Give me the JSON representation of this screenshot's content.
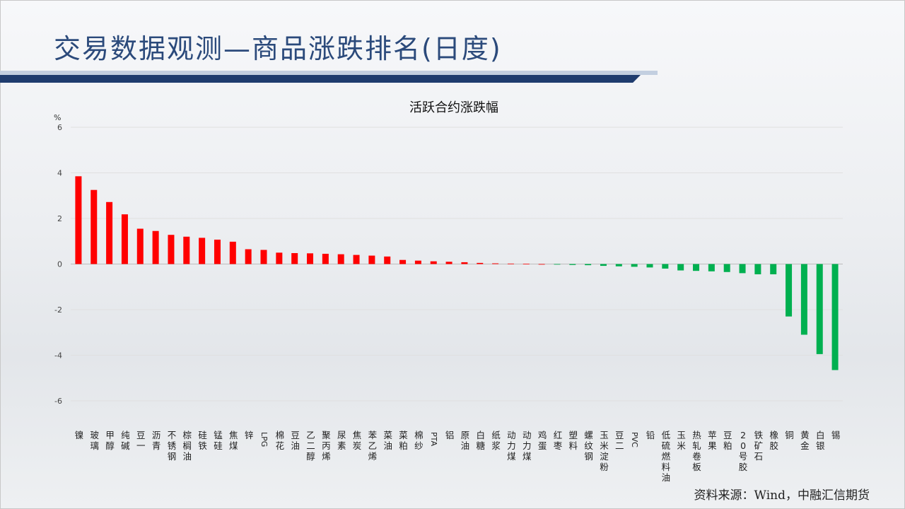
{
  "slide": {
    "title": "交易数据观测—商品涨跌排名(日度)",
    "source": "资料来源：Wind，中融汇信期货"
  },
  "colors": {
    "up": "#ff0000",
    "down": "#00b050",
    "title": "#2b4a7b",
    "bar": "#1f3c6e"
  },
  "chart_data": {
    "type": "bar",
    "title": "活跃合约涨跌幅",
    "ylabel": "%",
    "ylim": [
      -6,
      6
    ],
    "yticks": [
      6,
      4,
      2,
      0,
      -2,
      -4,
      -6
    ],
    "grid": true,
    "legend": "none",
    "categories": [
      "镍",
      "玻璃",
      "甲醇",
      "纯碱",
      "豆一",
      "沥青",
      "不锈钢",
      "棕榈油",
      "硅铁",
      "锰硅",
      "焦煤",
      "锌",
      "LPG",
      "棉花",
      "豆油",
      "乙二醇",
      "聚丙烯",
      "尿素",
      "焦炭",
      "苯乙烯",
      "菜油",
      "菜粕",
      "棉纱",
      "PTA",
      "铝",
      "原油",
      "白糖",
      "纸浆",
      "动力煤",
      "动力煤",
      "鸡蛋",
      "红枣",
      "塑料",
      "螺纹钢",
      "玉米淀粉",
      "豆二",
      "PVC",
      "铅",
      "低硫燃料油",
      "玉米",
      "热轧卷板",
      "苹果",
      "豆粕",
      "20号胶",
      "铁矿石",
      "橡胶",
      "铜",
      "黄金",
      "白银",
      "锡"
    ],
    "values": [
      3.85,
      3.25,
      2.72,
      2.18,
      1.55,
      1.45,
      1.28,
      1.2,
      1.15,
      1.07,
      0.98,
      0.65,
      0.62,
      0.5,
      0.48,
      0.47,
      0.45,
      0.43,
      0.4,
      0.37,
      0.33,
      0.18,
      0.15,
      0.12,
      0.1,
      0.08,
      0.05,
      0.03,
      0.02,
      0.01,
      0.0,
      -0.02,
      -0.04,
      -0.05,
      -0.08,
      -0.1,
      -0.12,
      -0.15,
      -0.2,
      -0.28,
      -0.3,
      -0.32,
      -0.35,
      -0.4,
      -0.45,
      -0.45,
      -2.3,
      -3.1,
      -3.95,
      -4.65
    ]
  }
}
